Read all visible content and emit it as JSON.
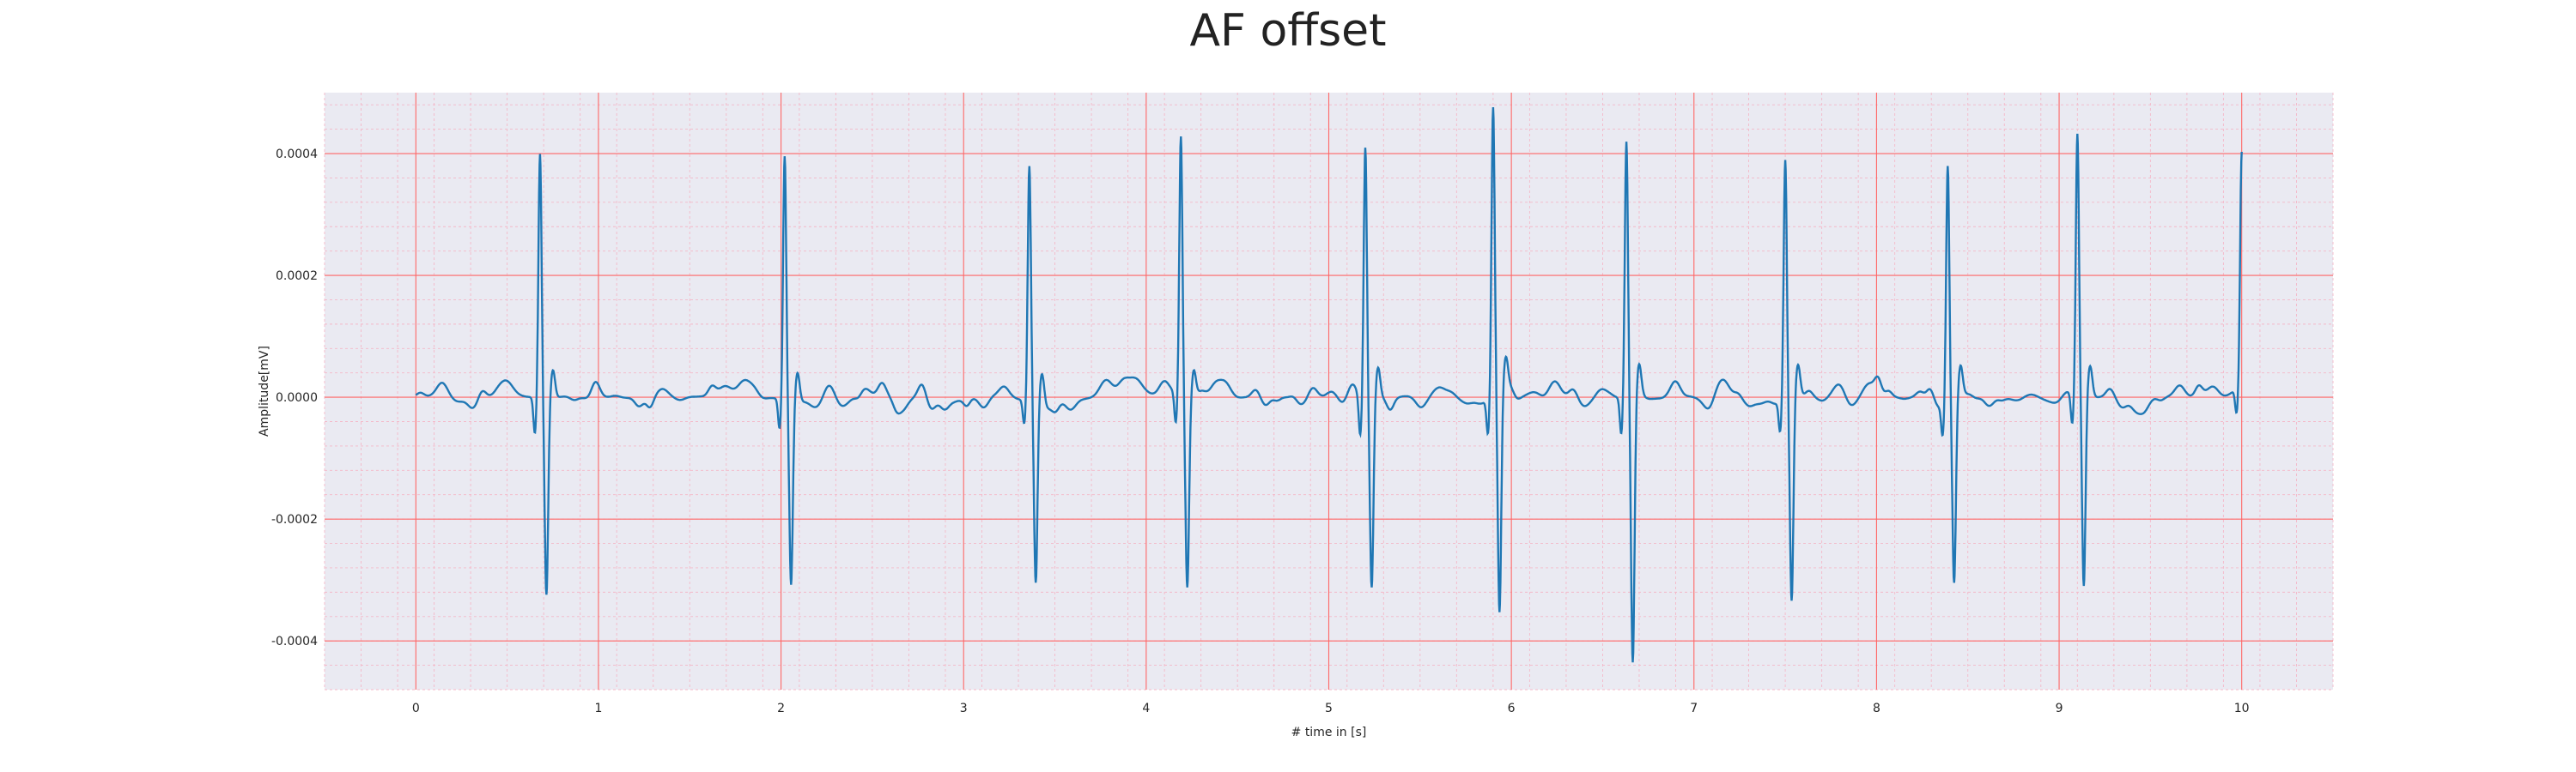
{
  "chart_data": {
    "type": "line",
    "title": "AF offset",
    "xlabel": "# time in [s]",
    "ylabel": "Amplitude[mV]",
    "xlim": [
      -0.5,
      10.5
    ],
    "ylim": [
      -0.00048,
      0.0005
    ],
    "grid": true,
    "x_ticks": [
      0,
      1,
      2,
      3,
      4,
      5,
      6,
      7,
      8,
      9,
      10
    ],
    "x_tick_labels": [
      "0",
      "1",
      "2",
      "3",
      "4",
      "5",
      "6",
      "7",
      "8",
      "9",
      "10"
    ],
    "y_ticks": [
      -0.0004,
      -0.0002,
      0.0,
      0.0002,
      0.0004
    ],
    "y_tick_labels": [
      "-0.0004",
      "-0.0002",
      "0.0000",
      "0.0002",
      "0.0004"
    ],
    "colors": {
      "line": "#1f77b4",
      "background": "#eaeaf2",
      "major_grid": "#ff6666",
      "minor_grid": "#f4b8c8"
    },
    "series": [
      {
        "beats": [
          {
            "t": 0.68,
            "r": 0.0004,
            "s": -0.00032,
            "q": -6e-05
          },
          {
            "t": 2.02,
            "r": 0.0004,
            "s": -0.0003,
            "q": -5e-05
          },
          {
            "t": 3.36,
            "r": 0.00038,
            "s": -0.00031,
            "q": -4e-05
          },
          {
            "t": 4.19,
            "r": 0.00043,
            "s": -0.0003,
            "q": -5e-05
          },
          {
            "t": 5.2,
            "r": 0.00042,
            "s": -0.00031,
            "q": -6e-05
          },
          {
            "t": 5.9,
            "r": 0.00046,
            "s": -0.00038,
            "q": -6e-05
          },
          {
            "t": 6.63,
            "r": 0.00042,
            "s": -0.00044,
            "q": -6e-05
          },
          {
            "t": 7.5,
            "r": 0.00039,
            "s": -0.00034,
            "q": -5e-05
          },
          {
            "t": 8.39,
            "r": 0.00039,
            "s": -0.0003,
            "q": -5e-05
          },
          {
            "t": 9.1,
            "r": 0.00042,
            "s": -0.00033,
            "q": -5e-05
          },
          {
            "t": 10.0,
            "r": 0.00039,
            "s": 0.0,
            "q": -4e-05
          }
        ],
        "baseline_fluctuation": 4e-05,
        "x_start": 0.0,
        "x_end": 10.0
      }
    ]
  }
}
